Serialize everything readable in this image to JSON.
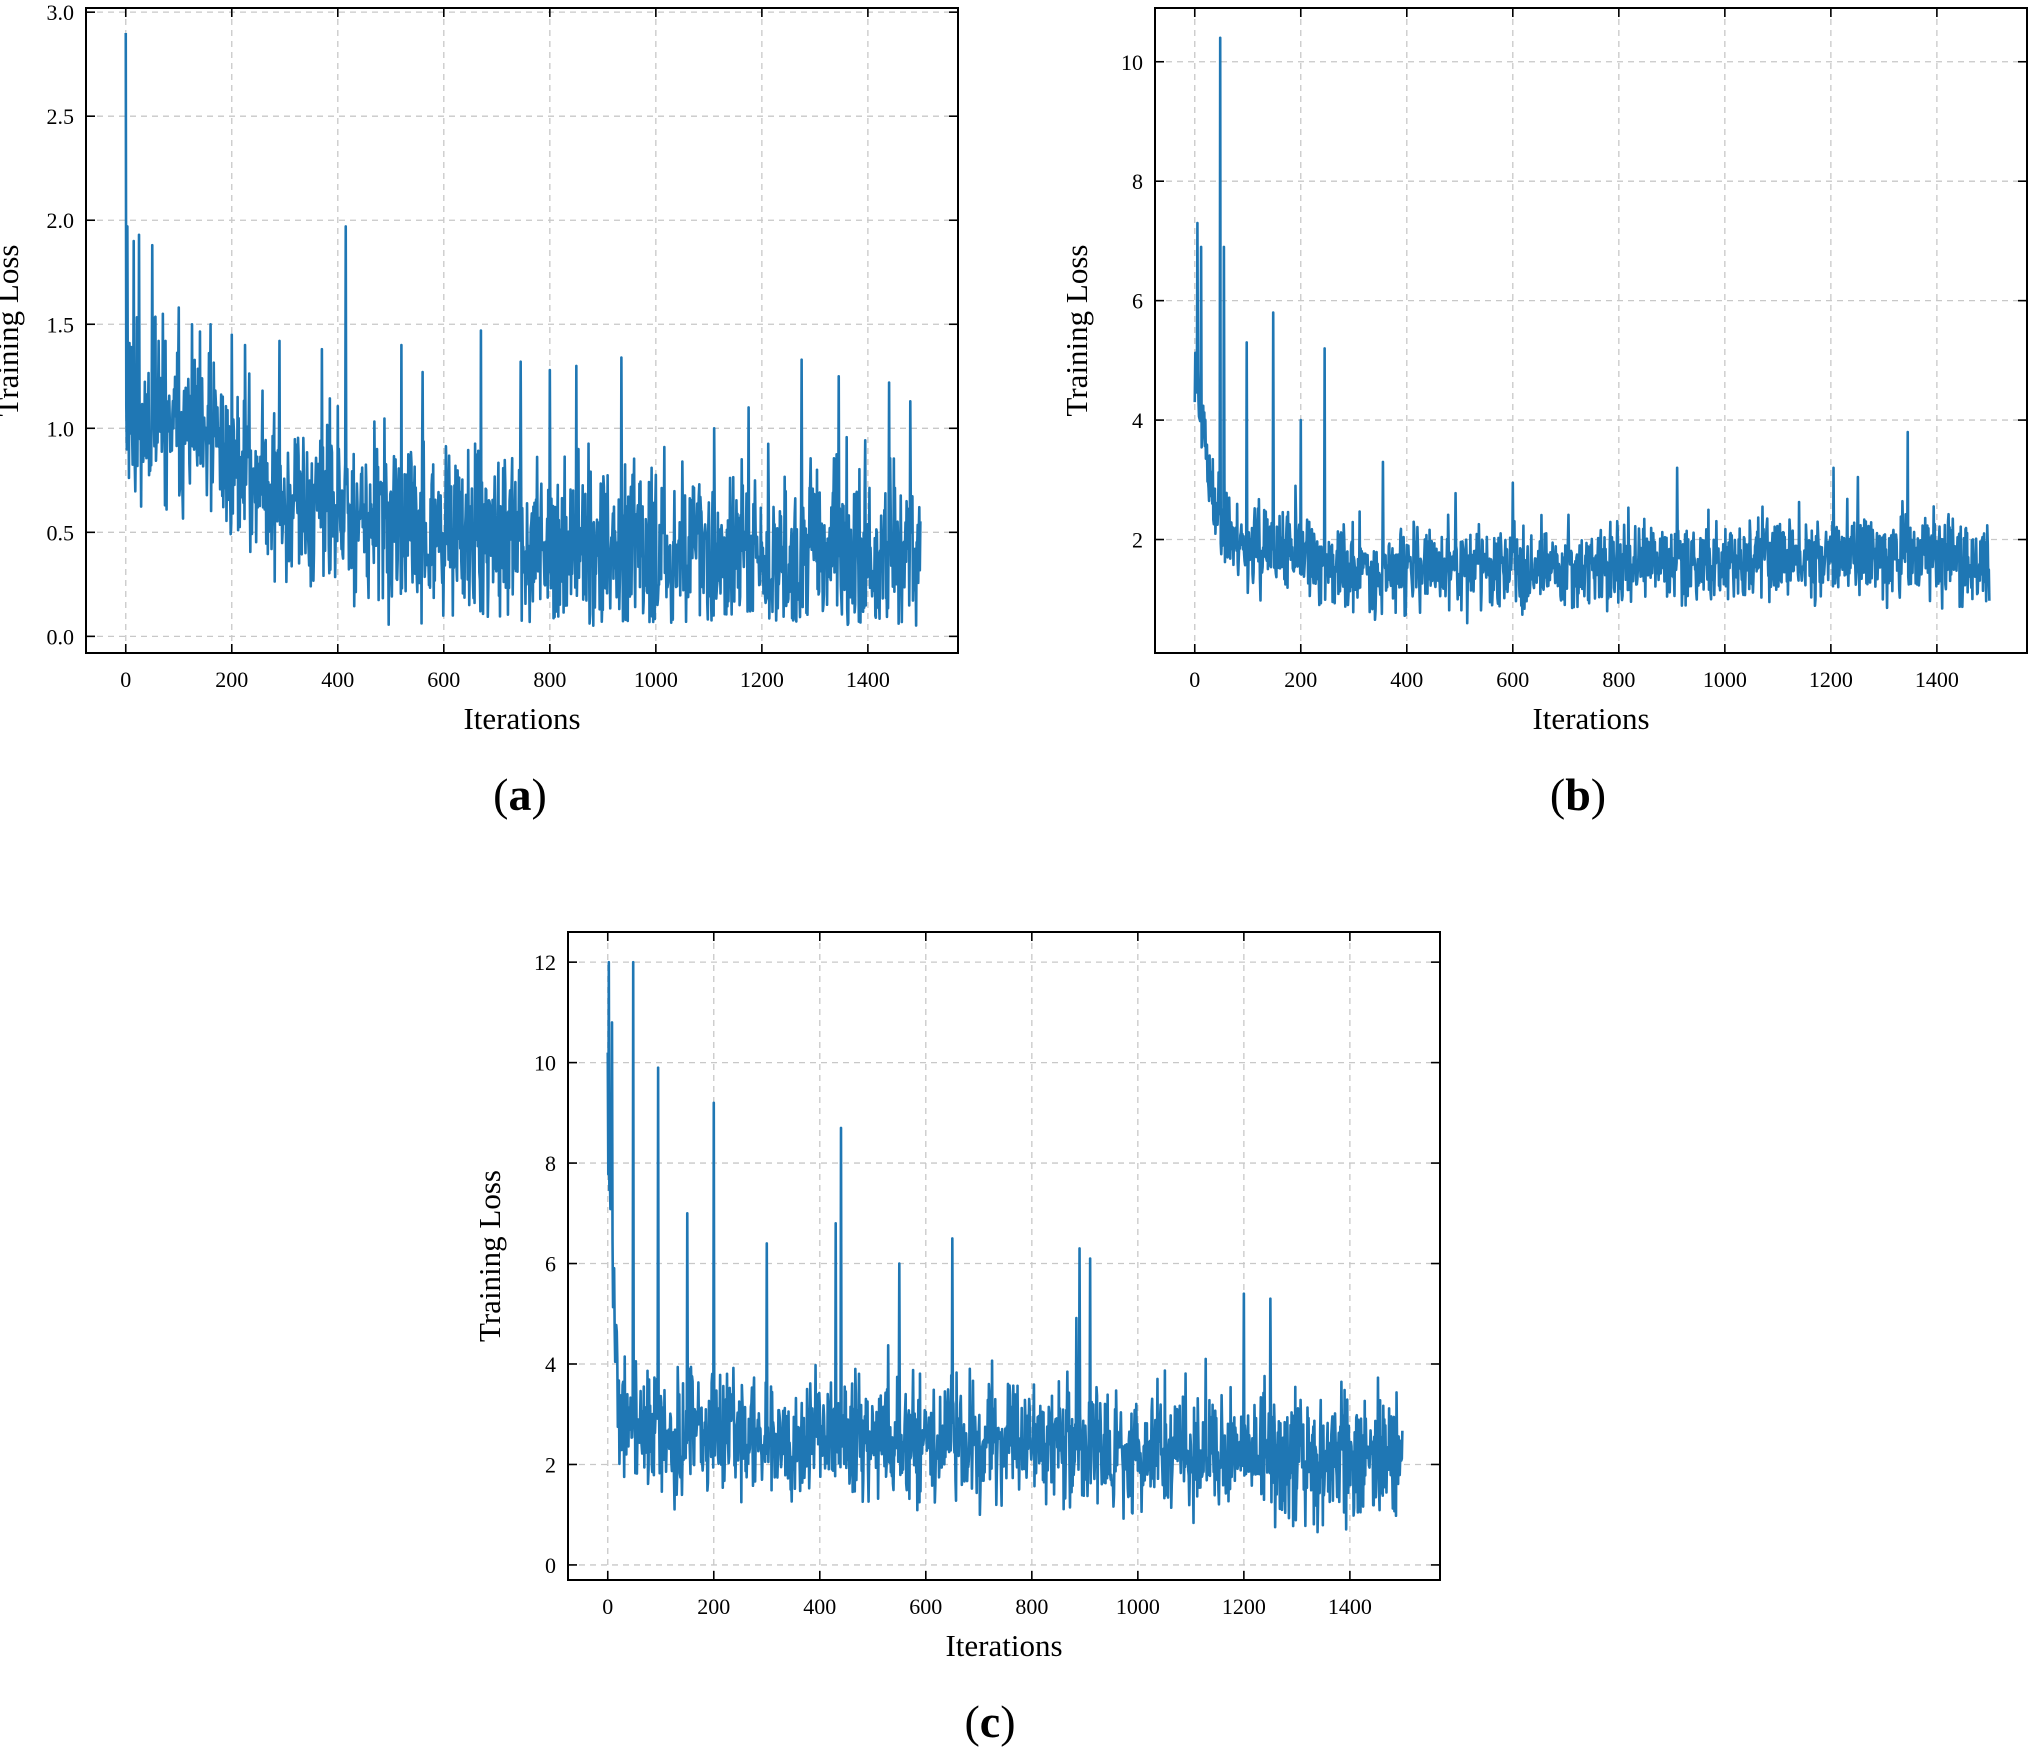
{
  "figure": {
    "line_color": "#1f77b4",
    "grid_color": "#c8c8c8"
  },
  "chart_data": [
    {
      "id": "a",
      "panel_label": "a",
      "type": "line",
      "xlabel": "Iterations",
      "ylabel": "Training Loss",
      "xlim": [
        -75,
        1570
      ],
      "ylim": [
        -0.08,
        3.02
      ],
      "xticks": [
        0,
        200,
        400,
        600,
        800,
        1000,
        1200,
        1400
      ],
      "xtick_labels": [
        "0",
        "200",
        "400",
        "600",
        "800",
        "1000",
        "1200",
        "1400"
      ],
      "yticks": [
        0.0,
        0.5,
        1.0,
        1.5,
        2.0,
        2.5,
        3.0
      ],
      "ytick_labels": [
        "0.0",
        "0.5",
        "1.0",
        "1.5",
        "2.0",
        "2.5",
        "3.0"
      ],
      "grid": true,
      "series": [
        {
          "name": "training loss",
          "n_points": 1500,
          "start": 2.9,
          "spikes": [
            [
              3,
              1.97
            ],
            [
              15,
              1.9
            ],
            [
              25,
              1.93
            ],
            [
              50,
              1.88
            ],
            [
              70,
              1.55
            ],
            [
              100,
              1.58
            ],
            [
              125,
              1.5
            ],
            [
              160,
              1.5
            ],
            [
              200,
              1.45
            ],
            [
              225,
              1.4
            ],
            [
              290,
              1.42
            ],
            [
              370,
              1.38
            ],
            [
              415,
              1.97
            ],
            [
              520,
              1.4
            ],
            [
              560,
              1.27
            ],
            [
              670,
              1.47
            ],
            [
              745,
              1.32
            ],
            [
              800,
              1.28
            ],
            [
              850,
              1.3
            ],
            [
              935,
              1.34
            ],
            [
              1110,
              1.0
            ],
            [
              1175,
              1.1
            ],
            [
              1275,
              1.33
            ],
            [
              1345,
              1.25
            ],
            [
              1440,
              1.22
            ],
            [
              1480,
              1.13
            ]
          ],
          "trend": [
            [
              0,
              1.05
            ],
            [
              150,
              0.95
            ],
            [
              300,
              0.65
            ],
            [
              500,
              0.5
            ],
            [
              800,
              0.43
            ],
            [
              1100,
              0.4
            ],
            [
              1500,
              0.37
            ]
          ],
          "noise": 0.19,
          "floor": 0.05,
          "seed": 11
        }
      ]
    },
    {
      "id": "b",
      "panel_label": "b",
      "type": "line",
      "xlabel": "Iterations",
      "ylabel": "Training Loss",
      "xlim": [
        -75,
        1570
      ],
      "ylim": [
        0.1,
        10.9
      ],
      "xticks": [
        0,
        200,
        400,
        600,
        800,
        1000,
        1200,
        1400
      ],
      "xtick_labels": [
        "0",
        "200",
        "400",
        "600",
        "800",
        "1000",
        "1200",
        "1400"
      ],
      "yticks": [
        2,
        4,
        6,
        8,
        10
      ],
      "ytick_labels": [
        "2",
        "4",
        "6",
        "8",
        "10"
      ],
      "grid": true,
      "series": [
        {
          "name": "training loss",
          "n_points": 1500,
          "start": 4.3,
          "spikes": [
            [
              5,
              7.3
            ],
            [
              12,
              6.9
            ],
            [
              48,
              10.4
            ],
            [
              55,
              6.9
            ],
            [
              98,
              5.3
            ],
            [
              148,
              5.8
            ],
            [
              200,
              4.0
            ],
            [
              245,
              5.2
            ],
            [
              355,
              3.3
            ],
            [
              600,
              2.95
            ],
            [
              910,
              3.2
            ],
            [
              1205,
              3.2
            ],
            [
              1345,
              3.8
            ]
          ],
          "trend": [
            [
              0,
              5.0
            ],
            [
              30,
              2.8
            ],
            [
              80,
              1.9
            ],
            [
              300,
              1.5
            ],
            [
              600,
              1.5
            ],
            [
              900,
              1.6
            ],
            [
              1300,
              1.8
            ],
            [
              1500,
              1.6
            ]
          ],
          "noise": 0.34,
          "floor": 0.55,
          "seed": 23
        }
      ]
    },
    {
      "id": "c",
      "panel_label": "c",
      "type": "line",
      "xlabel": "Iterations",
      "ylabel": "Training Loss",
      "xlim": [
        -75,
        1570
      ],
      "ylim": [
        -0.3,
        12.6
      ],
      "xticks": [
        0,
        200,
        400,
        600,
        800,
        1000,
        1200,
        1400
      ],
      "xtick_labels": [
        "0",
        "200",
        "400",
        "600",
        "800",
        "1000",
        "1200",
        "1400"
      ],
      "yticks": [
        0,
        2,
        4,
        6,
        8,
        10,
        12
      ],
      "ytick_labels": [
        "0",
        "2",
        "4",
        "6",
        "8",
        "10",
        "12"
      ],
      "grid": true,
      "series": [
        {
          "name": "training loss",
          "n_points": 1500,
          "start": 10.2,
          "spikes": [
            [
              2,
              12.0
            ],
            [
              8,
              10.8
            ],
            [
              48,
              12.0
            ],
            [
              95,
              9.9
            ],
            [
              200,
              9.2
            ],
            [
              150,
              7.0
            ],
            [
              300,
              6.4
            ],
            [
              440,
              8.7
            ],
            [
              430,
              6.8
            ],
            [
              550,
              6.0
            ],
            [
              650,
              6.5
            ],
            [
              890,
              6.3
            ],
            [
              910,
              6.1
            ],
            [
              1200,
              5.4
            ],
            [
              1250,
              5.3
            ]
          ],
          "trend": [
            [
              0,
              8.5
            ],
            [
              20,
              3.0
            ],
            [
              100,
              2.5
            ],
            [
              400,
              2.6
            ],
            [
              700,
              2.5
            ],
            [
              1000,
              2.2
            ],
            [
              1500,
              2.1
            ]
          ],
          "noise": 0.58,
          "floor": 0.45,
          "seed": 37
        }
      ]
    }
  ]
}
